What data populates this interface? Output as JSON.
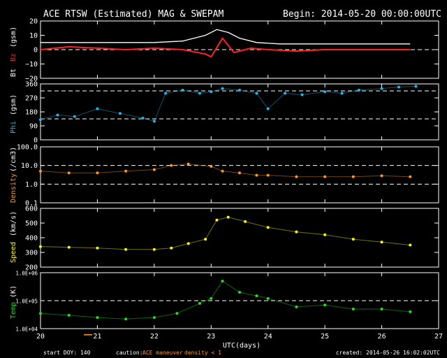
{
  "header": {
    "title": "ACE RTSW (Estimated) MAG & SWEPAM",
    "begin": "Begin: 2014-05-20 00:00:00UTC"
  },
  "footer": {
    "start_doy": "start DOY: 140",
    "caution": "caution:",
    "maneuver": "ACE maneuver",
    "density_note": "density < 1",
    "created": "created: 2014-05-26 16:02:02UTC"
  },
  "colors": {
    "bt": "#ffffff",
    "bz": "#ff2020",
    "phi": "#20b8e8",
    "density": "#ff9a18",
    "speed": "#ffff00",
    "temp": "#20e020",
    "maneuver": "#ff9a18",
    "density_note": "#ff9a18"
  },
  "chart_data": [
    {
      "type": "line",
      "id": "mag",
      "ylabel_bt": "Bt",
      "ylabel_bz": "Bz",
      "ylabel_unit": "(gsm)",
      "xlim": [
        20,
        27
      ],
      "ylim": [
        -20,
        20
      ],
      "yticks": [
        "20",
        "10",
        "0",
        "−10",
        "−20"
      ],
      "ytick_values": [
        20,
        10,
        0,
        -10,
        -20
      ],
      "reference_lines": [
        0
      ],
      "series": [
        {
          "name": "Bt",
          "x": [
            20.0,
            20.5,
            21.0,
            21.5,
            22.0,
            22.5,
            22.9,
            23.1,
            23.3,
            23.5,
            23.8,
            24.2,
            24.8,
            25.5,
            26.0,
            26.5
          ],
          "y": [
            5,
            5,
            5,
            5,
            5,
            6,
            10,
            14,
            12,
            8,
            5,
            4,
            4,
            4,
            4,
            4
          ]
        },
        {
          "name": "Bz",
          "x": [
            20.0,
            20.5,
            21.0,
            21.5,
            22.0,
            22.5,
            22.9,
            23.0,
            23.2,
            23.4,
            23.7,
            24.0,
            24.5,
            25.0,
            25.5,
            26.0,
            26.5
          ],
          "y": [
            0,
            2,
            1,
            0,
            1,
            0,
            -3,
            -5,
            8,
            -2,
            1,
            0,
            -1,
            0,
            0,
            0,
            0
          ]
        }
      ]
    },
    {
      "type": "scatter",
      "id": "phi",
      "ylabel_phi": "Phi",
      "ylabel_unit": "(gsm)",
      "xlim": [
        20,
        27
      ],
      "ylim": [
        0,
        360
      ],
      "yticks": [
        "360",
        "270",
        "180",
        "90",
        "0"
      ],
      "ytick_values": [
        360,
        270,
        180,
        90,
        0
      ],
      "reference_lines": [
        135,
        315
      ],
      "x": [
        20.0,
        20.3,
        20.6,
        21.0,
        21.4,
        21.8,
        22.0,
        22.2,
        22.5,
        22.8,
        23.0,
        23.2,
        23.5,
        23.8,
        24.0,
        24.3,
        24.6,
        25.0,
        25.3,
        25.6,
        26.0,
        26.3,
        26.6
      ],
      "y": [
        130,
        160,
        150,
        200,
        170,
        140,
        120,
        300,
        320,
        300,
        310,
        330,
        320,
        300,
        200,
        300,
        290,
        310,
        300,
        320,
        330,
        340,
        345
      ]
    },
    {
      "type": "scatter",
      "id": "density",
      "ylabel_density": "Density",
      "ylabel_unit": "(/cm3)",
      "scale": "log",
      "xlim": [
        20,
        27
      ],
      "ylim": [
        0.1,
        100
      ],
      "yticks": [
        "100.0",
        "10.0",
        "1.0",
        "0.1"
      ],
      "ytick_values": [
        100,
        10,
        1,
        0.1
      ],
      "reference_lines": [
        1,
        10
      ],
      "x": [
        20.0,
        20.5,
        21.0,
        21.5,
        22.0,
        22.3,
        22.6,
        23.0,
        23.2,
        23.5,
        23.8,
        24.0,
        24.5,
        25.0,
        25.5,
        26.0,
        26.5
      ],
      "y": [
        5,
        4,
        4,
        5,
        6,
        10,
        12,
        9,
        5,
        4,
        3,
        3,
        2.5,
        2.5,
        2.5,
        2.8,
        2.5
      ]
    },
    {
      "type": "scatter",
      "id": "speed",
      "ylabel_speed": "Speed",
      "ylabel_unit": "(km/s)",
      "xlim": [
        20,
        27
      ],
      "ylim": [
        200,
        600
      ],
      "yticks": [
        "600",
        "500",
        "400",
        "300",
        "200"
      ],
      "ytick_values": [
        600,
        500,
        400,
        300,
        200
      ],
      "x": [
        20.0,
        20.5,
        21.0,
        21.5,
        22.0,
        22.3,
        22.6,
        22.9,
        23.1,
        23.3,
        23.6,
        24.0,
        24.5,
        25.0,
        25.5,
        26.0,
        26.5
      ],
      "y": [
        340,
        335,
        330,
        320,
        320,
        330,
        360,
        390,
        520,
        540,
        510,
        470,
        440,
        420,
        390,
        370,
        350
      ]
    },
    {
      "type": "scatter",
      "id": "temp",
      "ylabel_temp": "Temp",
      "ylabel_unit": "(K)",
      "scale": "log",
      "xlim": [
        20,
        27
      ],
      "ylim": [
        10000,
        1000000
      ],
      "yticks": [
        "1.0E+06",
        "1.0E+05",
        "1.0E+04"
      ],
      "ytick_values": [
        1000000,
        100000,
        10000
      ],
      "reference_lines": [
        100000
      ],
      "xticks": [
        "20",
        "21",
        "22",
        "23",
        "24",
        "25",
        "26",
        "27"
      ],
      "xlabel": "UTC(days)",
      "x": [
        20.0,
        20.5,
        21.0,
        21.5,
        22.0,
        22.4,
        22.8,
        23.0,
        23.2,
        23.5,
        23.8,
        24.0,
        24.5,
        25.0,
        25.5,
        26.0,
        26.5
      ],
      "y": [
        35000,
        30000,
        25000,
        22000,
        25000,
        35000,
        80000,
        120000,
        500000,
        200000,
        150000,
        120000,
        60000,
        70000,
        50000,
        50000,
        40000
      ]
    }
  ]
}
